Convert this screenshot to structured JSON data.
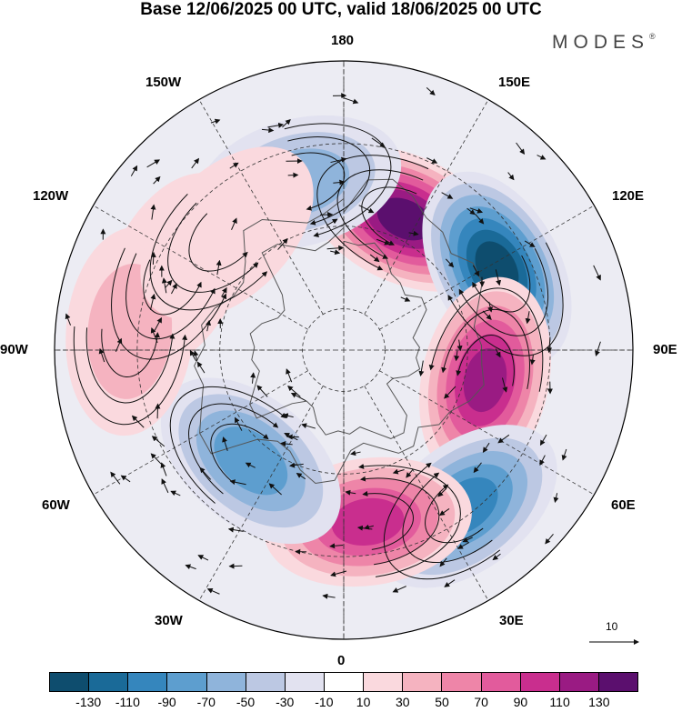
{
  "title": "Base 12/06/2025 00 UTC, valid 18/06/2025 00 UTC",
  "brand": "MODES",
  "brand_mark": "®",
  "longitude_labels": {
    "top": "180",
    "bottom": "0",
    "left": "90W",
    "right": "90E",
    "nw_upper": "150W",
    "nw_lower": "120W",
    "ne_upper": "150E",
    "ne_lower": "120E",
    "sw_upper": "60W",
    "sw_lower": "30W",
    "se_upper": "60E",
    "se_lower": "30E"
  },
  "reference_vector": {
    "label": "10"
  },
  "colorbar": {
    "colors": [
      "#0e4d6e",
      "#1a6a98",
      "#3586bd",
      "#5d9ecf",
      "#8fb4db",
      "#bcc8e3",
      "#e2e2f0",
      "#ffffff",
      "#fad9de",
      "#f5b3c0",
      "#ee85a8",
      "#e25b9c",
      "#c92e8e",
      "#9a1b83",
      "#5b0f6e"
    ],
    "tick_labels": [
      "-130",
      "-110",
      "-90",
      "-70",
      "-50",
      "-30",
      "-10",
      "10",
      "30",
      "50",
      "70",
      "90",
      "110",
      "130"
    ]
  },
  "colors": {
    "land_outline": "#555555",
    "grid": "#333333",
    "stream": "#111111"
  },
  "anomalies": [
    {
      "lon": 155,
      "lat": 55,
      "value": 130
    },
    {
      "lon": 118,
      "lat": 48,
      "value": -125
    },
    {
      "lon": 78,
      "lat": 55,
      "value": 112
    },
    {
      "lon": 38,
      "lat": 42,
      "value": -95
    },
    {
      "lon": 8,
      "lat": 48,
      "value": 92
    },
    {
      "lon": -40,
      "lat": 55,
      "value": -72
    },
    {
      "lon": -165,
      "lat": 48,
      "value": -58
    },
    {
      "lon": -115,
      "lat": 45,
      "value": 30
    },
    {
      "lon": -95,
      "lat": 38,
      "value": 25
    },
    {
      "lon": -135,
      "lat": 50,
      "value": 20
    }
  ]
}
